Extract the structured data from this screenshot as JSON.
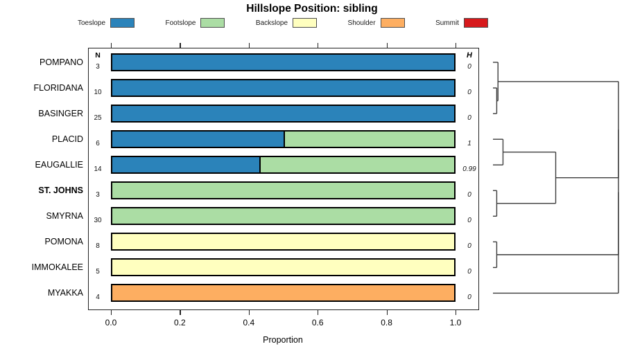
{
  "title": "Hillslope Position: sibling",
  "xlabel": "Proportion",
  "columns": {
    "n_header": "N",
    "h_header": "H"
  },
  "legend": [
    {
      "label": "Toeslope",
      "color": "#2B83BA"
    },
    {
      "label": "Footslope",
      "color": "#ABDDA4"
    },
    {
      "label": "Backslope",
      "color": "#FFFFBF"
    },
    {
      "label": "Shoulder",
      "color": "#FDAE61"
    },
    {
      "label": "Summit",
      "color": "#D7191C"
    }
  ],
  "chart_data": {
    "type": "bar",
    "orientation": "horizontal-stacked",
    "title": "Hillslope Position: sibling",
    "xlabel": "Proportion",
    "xlim": [
      0,
      1
    ],
    "x_ticks": [
      0,
      0.2,
      0.4,
      0.6,
      0.8,
      1.0
    ],
    "x_tick_labels": [
      "0.0",
      "0.2",
      "0.4",
      "0.6",
      "0.8",
      "1.0"
    ],
    "legend_position": "top",
    "categories": [
      "Toeslope",
      "Footslope",
      "Backslope",
      "Shoulder",
      "Summit"
    ],
    "colors": {
      "Toeslope": "#2B83BA",
      "Footslope": "#ABDDA4",
      "Backslope": "#FFFFBF",
      "Shoulder": "#FDAE61",
      "Summit": "#D7191C"
    },
    "rows": [
      {
        "label": "POMPANO",
        "bold": false,
        "n": 3,
        "h": "0",
        "segments": [
          {
            "category": "Toeslope",
            "value": 1.0
          }
        ]
      },
      {
        "label": "FLORIDANA",
        "bold": false,
        "n": 10,
        "h": "0",
        "segments": [
          {
            "category": "Toeslope",
            "value": 1.0
          }
        ]
      },
      {
        "label": "BASINGER",
        "bold": false,
        "n": 25,
        "h": "0",
        "segments": [
          {
            "category": "Toeslope",
            "value": 1.0
          }
        ]
      },
      {
        "label": "PLACID",
        "bold": false,
        "n": 6,
        "h": "1",
        "segments": [
          {
            "category": "Toeslope",
            "value": 0.5
          },
          {
            "category": "Footslope",
            "value": 0.5
          }
        ]
      },
      {
        "label": "EAUGALLIE",
        "bold": false,
        "n": 14,
        "h": "0.99",
        "segments": [
          {
            "category": "Toeslope",
            "value": 0.43
          },
          {
            "category": "Footslope",
            "value": 0.57
          }
        ]
      },
      {
        "label": "ST. JOHNS",
        "bold": true,
        "n": 3,
        "h": "0",
        "segments": [
          {
            "category": "Footslope",
            "value": 1.0
          }
        ]
      },
      {
        "label": "SMYRNA",
        "bold": false,
        "n": 30,
        "h": "0",
        "segments": [
          {
            "category": "Footslope",
            "value": 1.0
          }
        ]
      },
      {
        "label": "POMONA",
        "bold": false,
        "n": 8,
        "h": "0",
        "segments": [
          {
            "category": "Backslope",
            "value": 1.0
          }
        ]
      },
      {
        "label": "IMMOKALEE",
        "bold": false,
        "n": 5,
        "h": "0",
        "segments": [
          {
            "category": "Backslope",
            "value": 1.0
          }
        ]
      },
      {
        "label": "MYAKKA",
        "bold": false,
        "n": 4,
        "h": "0",
        "segments": [
          {
            "category": "Shoulder",
            "value": 1.0
          }
        ]
      }
    ]
  },
  "dendrogram": {
    "leaf_order": [
      "POMPANO",
      "FLORIDANA",
      "BASINGER",
      "PLACID",
      "EAUGALLIE",
      "ST. JOHNS",
      "SMYRNA",
      "POMONA",
      "IMMOKALEE",
      "MYAKKA"
    ],
    "merges": [
      {
        "id": "M1",
        "a": "L1",
        "b": "L2",
        "h": 0.03
      },
      {
        "id": "M2",
        "a": "L0",
        "b": "M1",
        "h": 0.04
      },
      {
        "id": "M3",
        "a": "L3",
        "b": "L4",
        "h": 0.08
      },
      {
        "id": "M4",
        "a": "L5",
        "b": "L6",
        "h": 0.03
      },
      {
        "id": "M5",
        "a": "M3",
        "b": "M4",
        "h": 0.5
      },
      {
        "id": "M6",
        "a": "L7",
        "b": "L8",
        "h": 0.03
      },
      {
        "id": "M7",
        "a": "M2",
        "b": "M5",
        "h": 1.0
      },
      {
        "id": "M8",
        "a": "M7",
        "b": "M6",
        "h": 1.0
      },
      {
        "id": "M9",
        "a": "M8",
        "b": "L9",
        "h": 1.0
      }
    ]
  }
}
